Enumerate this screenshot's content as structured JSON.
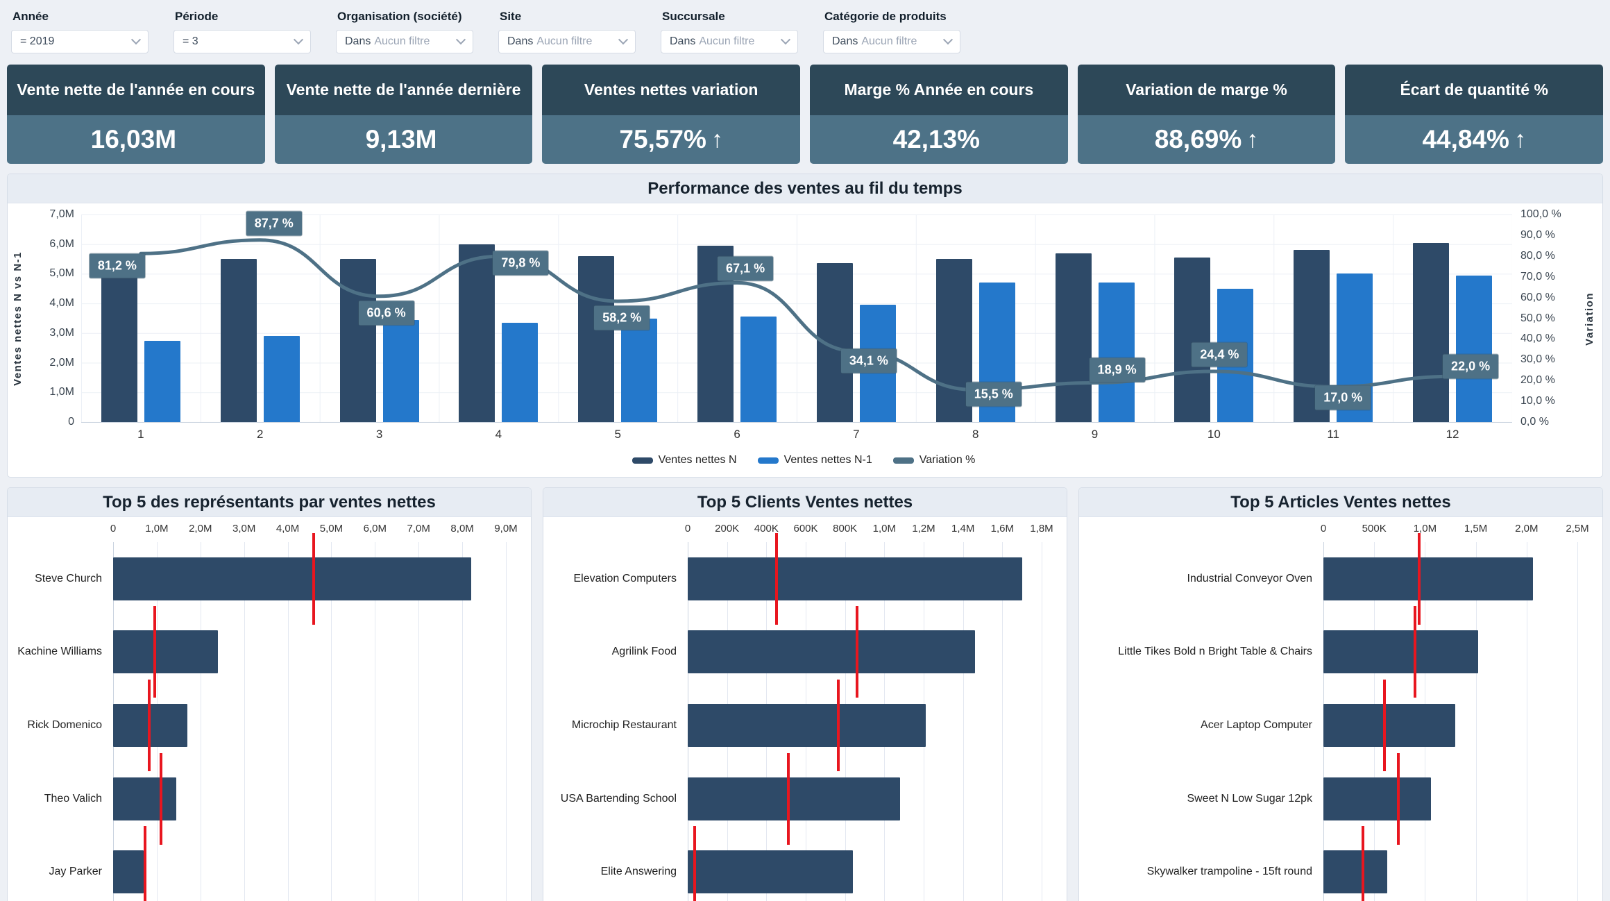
{
  "colors": {
    "bar_dark": "#2e4a68",
    "bar_blue": "#2478cb",
    "line_slate": "#4e7186",
    "target_red": "#e8161f",
    "kpi_header": "#2d4858",
    "kpi_body": "#4d7287",
    "panel_header_bg": "#e7ecf3",
    "page_bg": "#edf0f5"
  },
  "filters": [
    {
      "label": "Année",
      "prefix": "= 2019",
      "muted": ""
    },
    {
      "label": "Période",
      "prefix": "= 3",
      "muted": ""
    },
    {
      "label": "Organisation (société)",
      "prefix": "Dans",
      "muted": "Aucun filtre"
    },
    {
      "label": "Site",
      "prefix": "Dans",
      "muted": "Aucun filtre"
    },
    {
      "label": "Succursale",
      "prefix": "Dans",
      "muted": "Aucun filtre"
    },
    {
      "label": "Catégorie de produits",
      "prefix": "Dans",
      "muted": "Aucun filtre"
    }
  ],
  "kpis": [
    {
      "title": "Vente nette de l'année en cours",
      "value": "16,03M",
      "arrow": ""
    },
    {
      "title": "Vente nette de l'année dernière",
      "value": "9,13M",
      "arrow": ""
    },
    {
      "title": "Ventes nettes variation",
      "value": "75,57%",
      "arrow": "↑"
    },
    {
      "title": "Marge % Année en cours",
      "value": "42,13%",
      "arrow": ""
    },
    {
      "title": "Variation de marge %",
      "value": "88,69%",
      "arrow": "↑"
    },
    {
      "title": "Écart de quantité %",
      "value": "44,84%",
      "arrow": "↑"
    }
  ],
  "chart_data": [
    {
      "type": "combo-bar-line",
      "title": "Performance des ventes au fil du temps",
      "categories": [
        "1",
        "2",
        "3",
        "4",
        "5",
        "6",
        "7",
        "8",
        "9",
        "10",
        "11",
        "12"
      ],
      "grid": true,
      "legend_position": "bottom",
      "y_left": {
        "label": "Ventes nettes N vs N-1",
        "max": 7,
        "unit": "M",
        "ticks": [
          "7,0M",
          "6,0M",
          "5,0M",
          "4,0M",
          "3,0M",
          "2,0M",
          "1,0M",
          "0"
        ]
      },
      "y_right": {
        "label": "Variation",
        "max": 100,
        "unit": "%",
        "ticks": [
          "100,0 %",
          "90,0 %",
          "80,0 %",
          "70,0 %",
          "60,0 %",
          "50,0 %",
          "40,0 %",
          "30,0 %",
          "20,0 %",
          "10,0 %",
          "0,0 %"
        ]
      },
      "series": [
        {
          "name": "Ventes nettes N",
          "type": "bar",
          "axis": "left",
          "color": "#2e4a68",
          "values": [
            5.0,
            5.5,
            5.5,
            6.0,
            5.6,
            5.95,
            5.35,
            5.5,
            5.7,
            5.55,
            5.8,
            6.05
          ]
        },
        {
          "name": "Ventes nettes N-1",
          "type": "bar",
          "axis": "left",
          "color": "#2478cb",
          "values": [
            2.75,
            2.9,
            3.45,
            3.35,
            3.5,
            3.55,
            3.95,
            4.7,
            4.7,
            4.5,
            5.0,
            4.95
          ]
        },
        {
          "name": "Variation %",
          "type": "line",
          "axis": "right",
          "color": "#4e7186",
          "values": [
            81.2,
            87.7,
            60.6,
            79.8,
            58.2,
            67.1,
            34.1,
            15.5,
            18.9,
            24.4,
            17.0,
            22.0
          ],
          "labels": [
            "81,2 %",
            "87,7 %",
            "60,6 %",
            "79,8 %",
            "58,2 %",
            "67,1 %",
            "34,1 %",
            "15,5 %",
            "18,9 %",
            "24,4 %",
            "17,0 %",
            "22,0 %"
          ]
        }
      ]
    },
    {
      "type": "bullet-bar",
      "title": "Top 5 des représentants par ventes nettes",
      "x_max": 9,
      "x_ticks": [
        "0",
        "1,0M",
        "2,0M",
        "3,0M",
        "4,0M",
        "5,0M",
        "6,0M",
        "7,0M",
        "8,0M",
        "9,0M"
      ],
      "items": [
        {
          "label": "Steve Church",
          "value": 8.2,
          "target": 4.6
        },
        {
          "label": "Kachine Williams",
          "value": 2.4,
          "target": 0.95
        },
        {
          "label": "Rick Domenico",
          "value": 1.7,
          "target": 0.82
        },
        {
          "label": "Theo Valich",
          "value": 1.45,
          "target": 1.1
        },
        {
          "label": "Jay Parker",
          "value": 0.7,
          "target": 0.73
        }
      ]
    },
    {
      "type": "bullet-bar",
      "title": "Top 5 Clients Ventes nettes",
      "x_max": 1.8,
      "x_ticks": [
        "0",
        "200K",
        "400K",
        "600K",
        "800K",
        "1,0M",
        "1,2M",
        "1,4M",
        "1,6M",
        "1,8M"
      ],
      "items": [
        {
          "label": "Elevation Computers",
          "value": 1.7,
          "target": 0.45
        },
        {
          "label": "Agrilink Food",
          "value": 1.46,
          "target": 0.86
        },
        {
          "label": "Microchip Restaurant",
          "value": 1.21,
          "target": 0.765
        },
        {
          "label": "USA Bartending School",
          "value": 1.08,
          "target": 0.51
        },
        {
          "label": "Elite Answering",
          "value": 0.84,
          "target": 0.035
        }
      ]
    },
    {
      "type": "bullet-bar",
      "title": "Top 5 Articles Ventes nettes",
      "x_max": 2.5,
      "x_ticks": [
        "0",
        "500K",
        "1,0M",
        "1,5M",
        "2,0M",
        "2,5M"
      ],
      "items": [
        {
          "label": "Industrial Conveyor Oven",
          "value": 2.06,
          "target": 0.94
        },
        {
          "label": "Little Tikes Bold n Bright Table & Chairs",
          "value": 1.52,
          "target": 0.9
        },
        {
          "label": "Acer Laptop Computer",
          "value": 1.3,
          "target": 0.6
        },
        {
          "label": "Sweet N Low Sugar 12pk",
          "value": 1.06,
          "target": 0.74
        },
        {
          "label": "Skywalker trampoline - 15ft round",
          "value": 0.63,
          "target": 0.39
        }
      ]
    }
  ]
}
